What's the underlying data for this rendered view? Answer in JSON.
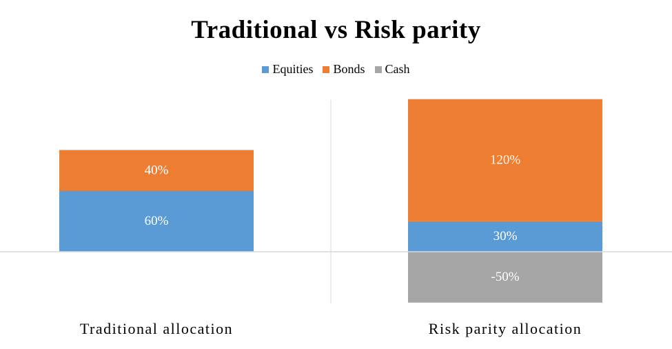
{
  "chart_data": {
    "type": "bar",
    "stacked": true,
    "title": "Traditional vs Risk parity",
    "categories": [
      "Traditional allocation",
      "Risk parity allocation"
    ],
    "series": [
      {
        "name": "Equities",
        "values": [
          60,
          30
        ],
        "labels": [
          "60%",
          "30%"
        ],
        "color": "#5B9BD5"
      },
      {
        "name": "Bonds",
        "values": [
          40,
          120
        ],
        "labels": [
          "40%",
          "120%"
        ],
        "color": "#ED7D31"
      },
      {
        "name": "Cash",
        "values": [
          0,
          -50
        ],
        "labels": [
          "",
          "-50%"
        ],
        "color": "#A5A5A5"
      }
    ],
    "ylim": [
      -50,
      150
    ],
    "legend_position": "top",
    "grid": false,
    "axis_color": "#D9D9D9"
  }
}
